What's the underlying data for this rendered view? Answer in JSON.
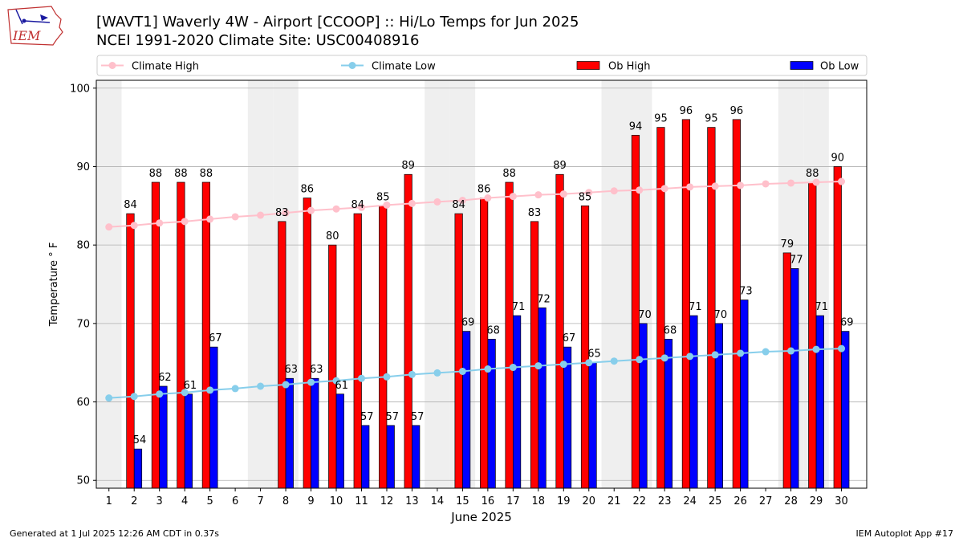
{
  "header": {
    "title_line1": "[WAVT1] Waverly 4W - Airport [CCOOP] :: Hi/Lo Temps for Jun 2025",
    "title_line2": "NCEI 1991-2020 Climate Site: USC00408916",
    "logo_text": "IEM"
  },
  "footer": {
    "generated": "Generated at 1 Jul 2025 12:26 AM CDT in 0.37s",
    "app": "IEM Autoplot App #17"
  },
  "colors": {
    "ob_high": "#ff0000",
    "ob_low": "#0000ff",
    "climate_high": "#ffc0cb",
    "climate_low": "#87ceeb",
    "weekend_shade": "#efefef",
    "grid": "#b0b0b0"
  },
  "chart_data": {
    "type": "bar",
    "xlabel": "June 2025",
    "ylabel": "Temperature ° F",
    "ylim": [
      49,
      101
    ],
    "yticks": [
      50,
      60,
      70,
      80,
      90,
      100
    ],
    "grid": "horizontal",
    "legend_placement": "top",
    "x": [
      1,
      2,
      3,
      4,
      5,
      6,
      7,
      8,
      9,
      10,
      11,
      12,
      13,
      14,
      15,
      16,
      17,
      18,
      19,
      20,
      21,
      22,
      23,
      24,
      25,
      26,
      27,
      28,
      29,
      30
    ],
    "shaded_days": [
      1,
      7,
      8,
      14,
      15,
      21,
      22,
      28,
      29
    ],
    "series": [
      {
        "name": "Climate High",
        "kind": "line",
        "values": [
          82.3,
          82.5,
          82.8,
          83.0,
          83.3,
          83.6,
          83.8,
          84.1,
          84.4,
          84.6,
          84.8,
          85.1,
          85.3,
          85.5,
          85.7,
          86.0,
          86.2,
          86.4,
          86.5,
          86.7,
          86.9,
          87.0,
          87.2,
          87.4,
          87.5,
          87.6,
          87.8,
          87.9,
          88.0,
          88.1
        ]
      },
      {
        "name": "Climate Low",
        "kind": "line",
        "values": [
          60.5,
          60.7,
          61.0,
          61.2,
          61.5,
          61.7,
          62.0,
          62.2,
          62.5,
          62.7,
          63.0,
          63.2,
          63.5,
          63.7,
          63.9,
          64.2,
          64.4,
          64.6,
          64.8,
          65.0,
          65.2,
          65.4,
          65.6,
          65.8,
          66.0,
          66.2,
          66.4,
          66.5,
          66.7,
          66.8
        ]
      },
      {
        "name": "Ob High",
        "kind": "bar",
        "values": [
          null,
          84,
          88,
          88,
          88,
          null,
          null,
          83,
          86,
          80,
          84,
          85,
          89,
          null,
          84,
          86,
          88,
          83,
          89,
          85,
          null,
          94,
          95,
          96,
          95,
          96,
          null,
          79,
          88,
          90
        ]
      },
      {
        "name": "Ob Low",
        "kind": "bar",
        "values": [
          null,
          54,
          62,
          61,
          67,
          null,
          null,
          63,
          63,
          61,
          57,
          57,
          57,
          null,
          69,
          68,
          71,
          72,
          67,
          65,
          null,
          70,
          68,
          71,
          70,
          73,
          null,
          77,
          71,
          69
        ]
      }
    ]
  }
}
